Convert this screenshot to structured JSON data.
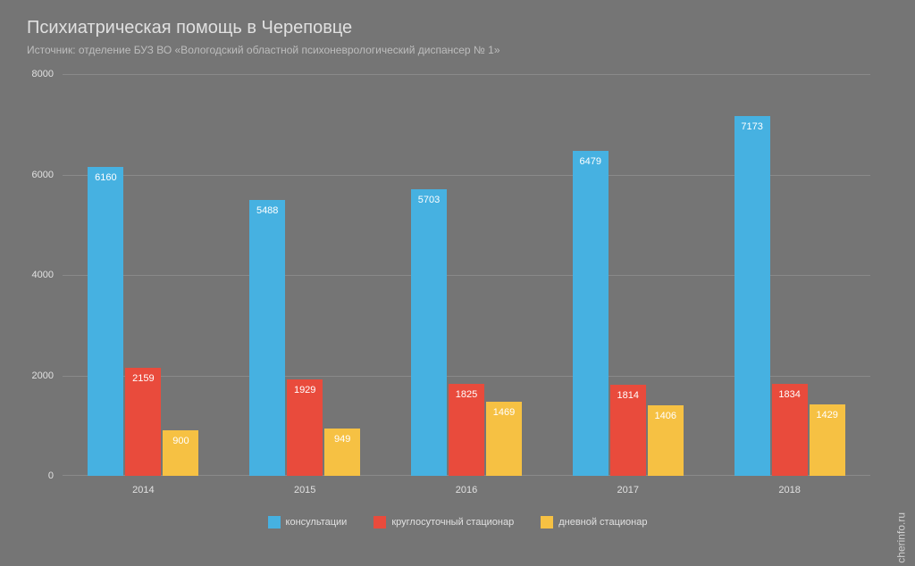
{
  "title": "Психиатрическая помощь в Череповце",
  "subtitle": "Источник: отделение БУЗ ВО «Вологодский областной психоневрологический диспансер № 1»",
  "watermark": "cherinfo.ru",
  "chart": {
    "type": "bar",
    "background_color": "#757575",
    "grid_color": "#8a8a8a",
    "text_color": "#e0e0e0",
    "label_inside_color": "#ffffff",
    "title_fontsize": 20,
    "subtitle_fontsize": 12,
    "axis_fontsize": 11,
    "bar_label_fontsize": 11,
    "ylim": [
      0,
      8000
    ],
    "ytick_step": 2000,
    "yticks": [
      0,
      2000,
      4000,
      6000,
      8000
    ],
    "categories": [
      "2014",
      "2015",
      "2016",
      "2017",
      "2018"
    ],
    "series": [
      {
        "name": "консультации",
        "color": "#46b1e1",
        "values": [
          6160,
          5488,
          5703,
          6479,
          7173
        ]
      },
      {
        "name": "круглосуточный стационар",
        "color": "#e94b3c",
        "values": [
          2159,
          1929,
          1825,
          1814,
          1834
        ]
      },
      {
        "name": "дневной стационар",
        "color": "#f6c143",
        "values": [
          900,
          949,
          1469,
          1406,
          1429
        ]
      }
    ]
  }
}
